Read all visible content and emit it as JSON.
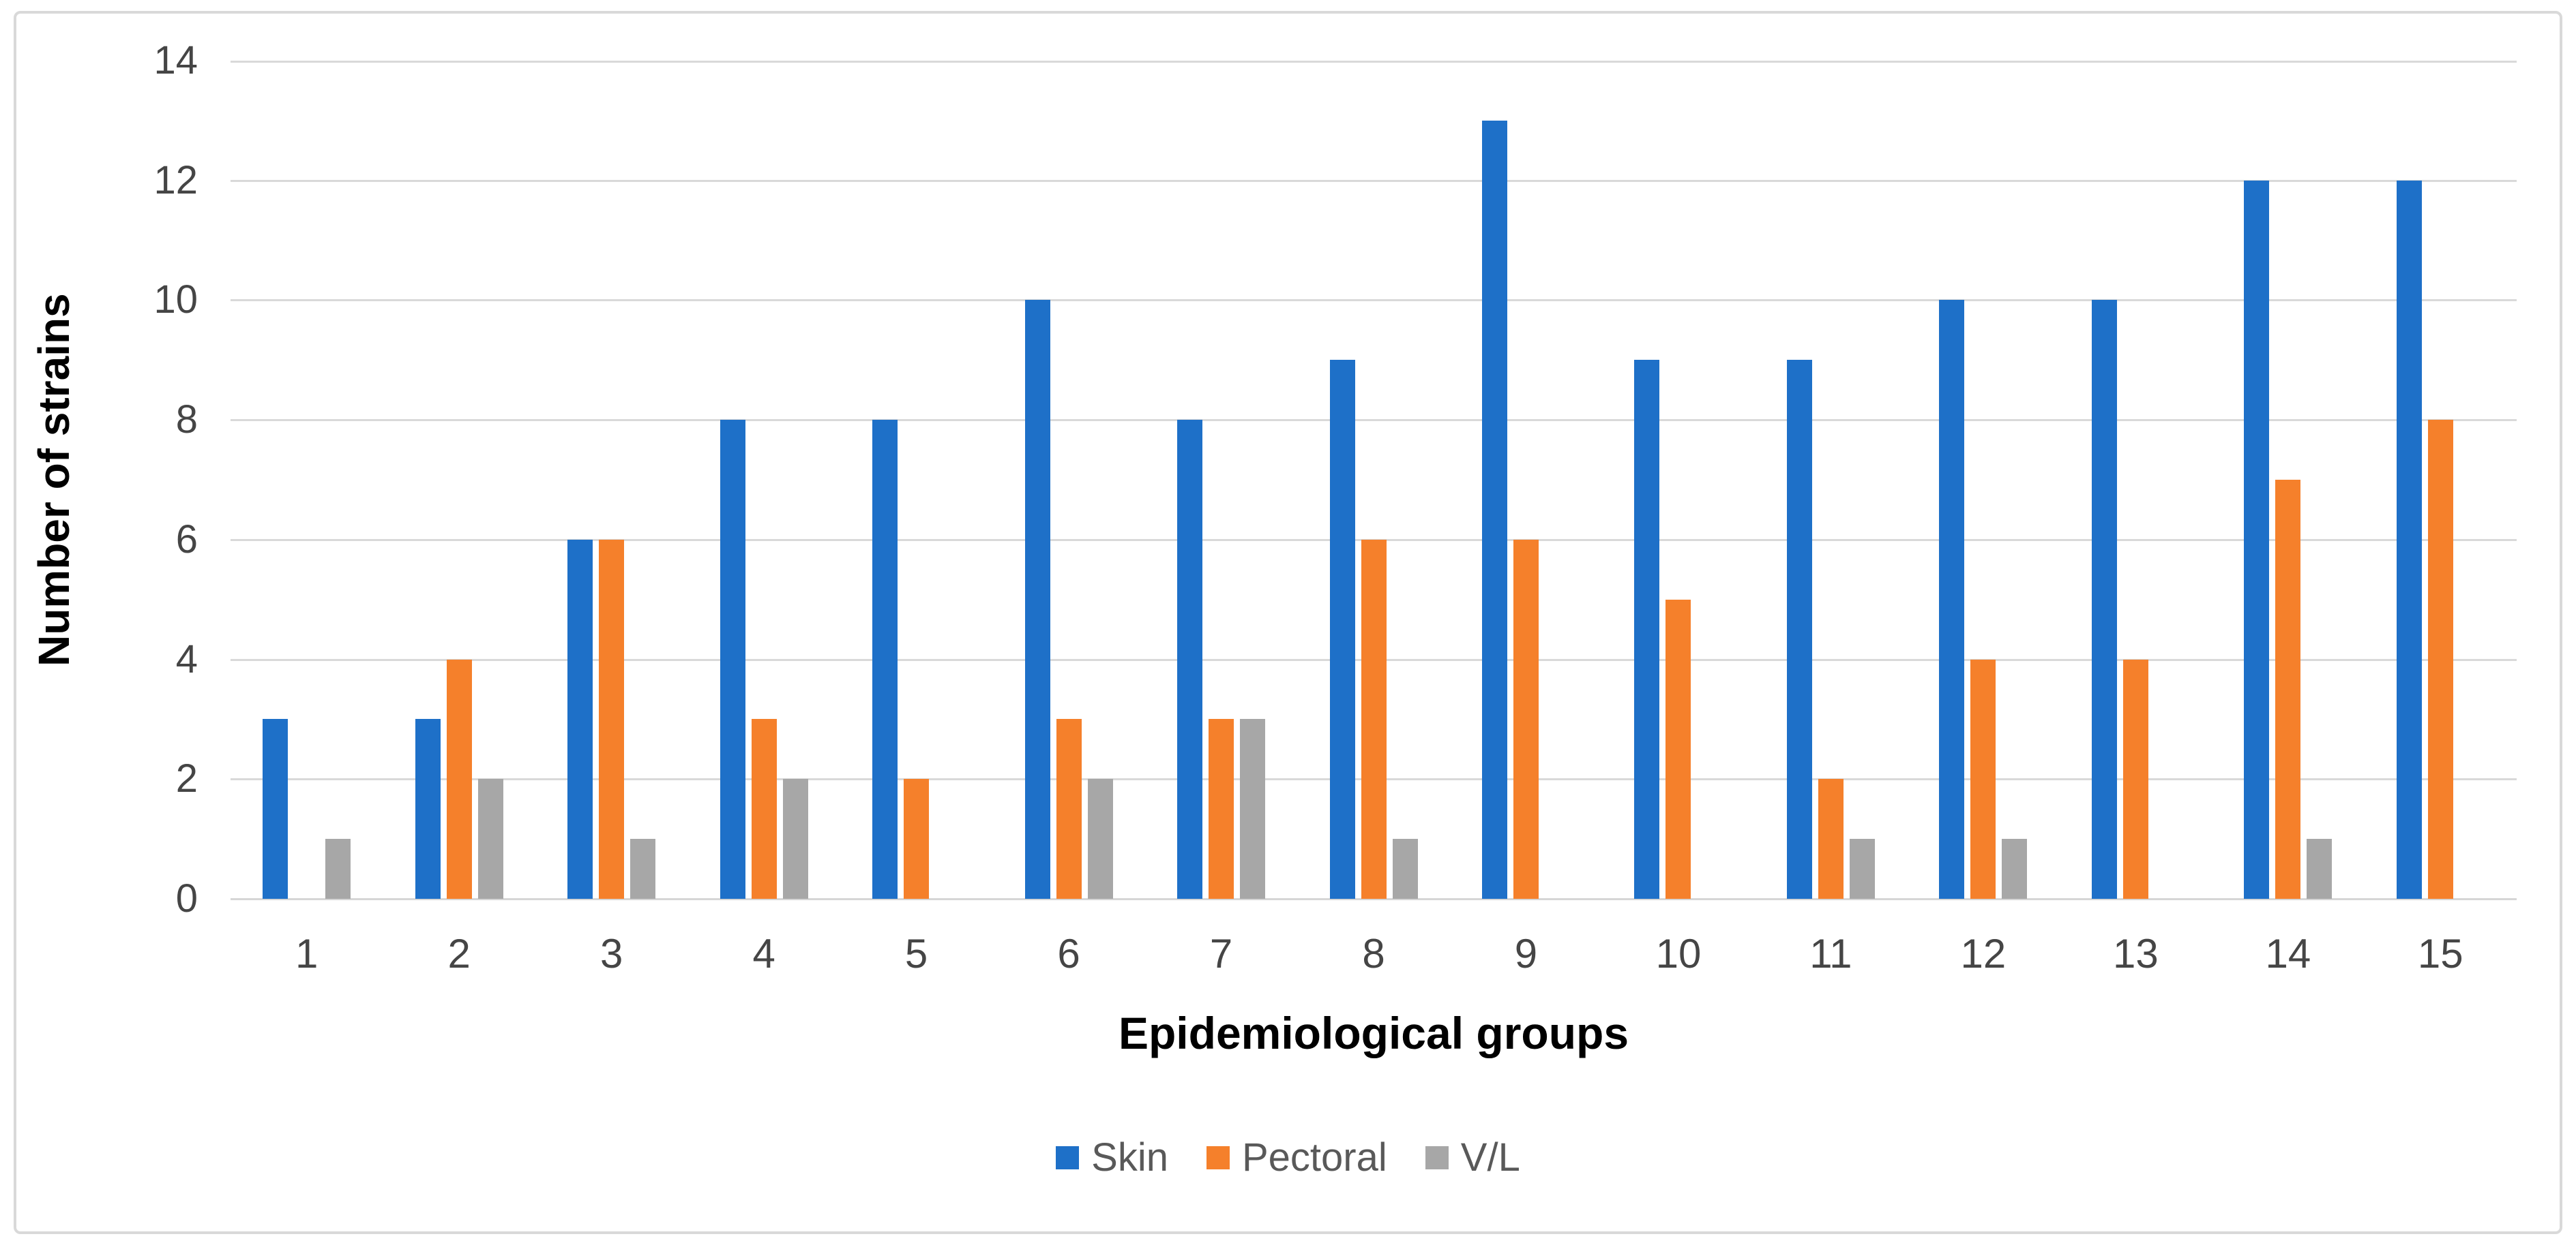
{
  "chart_data": {
    "type": "bar",
    "title": "",
    "categories": [
      "1",
      "2",
      "3",
      "4",
      "5",
      "6",
      "7",
      "8",
      "9",
      "10",
      "11",
      "12",
      "13",
      "14",
      "15"
    ],
    "series": [
      {
        "name": "Skin",
        "color": "#1e70c8",
        "values": [
          3,
          3,
          6,
          8,
          8,
          10,
          8,
          9,
          13,
          9,
          9,
          10,
          10,
          12,
          12
        ]
      },
      {
        "name": "Pectoral",
        "color": "#f5802b",
        "values": [
          0,
          4,
          6,
          3,
          2,
          3,
          3,
          6,
          6,
          5,
          2,
          4,
          4,
          7,
          8
        ]
      },
      {
        "name": "V/L",
        "color": "#a7a7a7",
        "values": [
          1,
          2,
          1,
          2,
          0,
          2,
          3,
          1,
          0,
          0,
          1,
          1,
          0,
          1,
          0
        ]
      }
    ],
    "xlabel": "Epidemiological groups",
    "ylabel": "Number of strains",
    "ylim": [
      0,
      14
    ],
    "ytick_step": 2,
    "yticks": [
      "0",
      "2",
      "4",
      "6",
      "8",
      "10",
      "12",
      "14"
    ],
    "grid": true,
    "gridline_color": "#d9d9d9",
    "tick_label_color": "#454545",
    "legend_text_color": "#595959",
    "legend_position": "bottom-center"
  }
}
